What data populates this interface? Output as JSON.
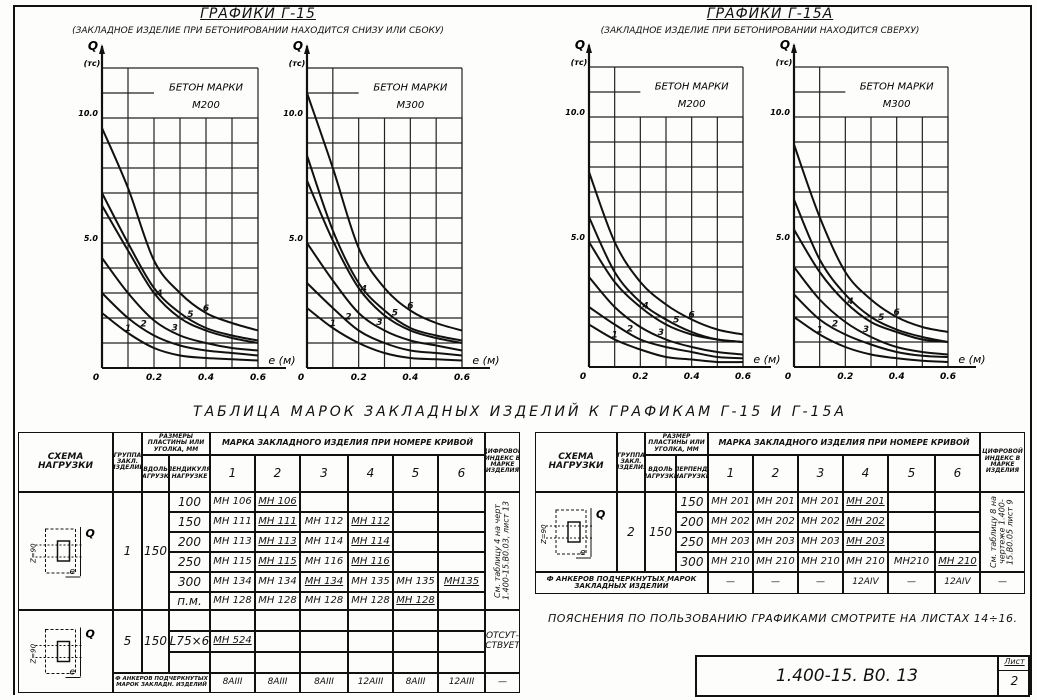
{
  "graphs_left": {
    "title": "Графики Г-15",
    "subtitle": "(Закладное изделие при бетонировании находится снизу или сбоку)"
  },
  "graphs_right": {
    "title": "Графики Г-15а",
    "subtitle": "(Закладное изделие при бетонировании находится сверху)"
  },
  "chart_data": [
    {
      "type": "line",
      "title": "Бетон марки М200",
      "group": "Г-15",
      "ylabel": "Q",
      "yunit": "(тс)",
      "xlabel": "e (м)",
      "xlim": [
        0,
        0.6
      ],
      "ylim": [
        0,
        12
      ],
      "xticks": [
        "0",
        "0.2",
        "0.4",
        "0.6"
      ],
      "yticks": [
        "5.0",
        "10.0"
      ],
      "grid": true,
      "x": [
        0,
        0.1,
        0.2,
        0.3,
        0.4,
        0.5,
        0.6
      ],
      "series": [
        {
          "name": "1",
          "values": [
            2.2,
            1.4,
            0.8,
            0.5,
            0.4,
            0.35,
            0.3
          ]
        },
        {
          "name": "2",
          "values": [
            3.0,
            2.0,
            1.3,
            0.9,
            0.7,
            0.6,
            0.5
          ]
        },
        {
          "name": "3",
          "values": [
            4.4,
            3.0,
            1.9,
            1.3,
            1.0,
            0.8,
            0.7
          ]
        },
        {
          "name": "4",
          "values": [
            6.5,
            4.7,
            3.0,
            2.0,
            1.5,
            1.2,
            1.0
          ]
        },
        {
          "name": "5",
          "values": [
            7.0,
            5.0,
            3.2,
            2.2,
            1.6,
            1.3,
            1.1
          ]
        },
        {
          "name": "6",
          "values": [
            9.6,
            7.2,
            4.3,
            3.0,
            2.2,
            1.8,
            1.5
          ]
        }
      ]
    },
    {
      "type": "line",
      "title": "Бетон марки М300",
      "group": "Г-15",
      "ylabel": "Q",
      "yunit": "(тс)",
      "xlabel": "e (м)",
      "xlim": [
        0,
        0.6
      ],
      "ylim": [
        0,
        12
      ],
      "xticks": [
        "0",
        "0.2",
        "0.4",
        "0.6"
      ],
      "yticks": [
        "5.0",
        "10.0"
      ],
      "grid": true,
      "x": [
        0,
        0.1,
        0.2,
        0.3,
        0.4,
        0.5,
        0.6
      ],
      "series": [
        {
          "name": "1",
          "values": [
            2.4,
            1.6,
            1.0,
            0.6,
            0.4,
            0.35,
            0.3
          ]
        },
        {
          "name": "2",
          "values": [
            3.4,
            2.4,
            1.5,
            1.0,
            0.7,
            0.6,
            0.5
          ]
        },
        {
          "name": "3",
          "values": [
            5.0,
            3.5,
            2.2,
            1.5,
            1.1,
            0.9,
            0.7
          ]
        },
        {
          "name": "4",
          "values": [
            7.5,
            5.1,
            3.2,
            2.1,
            1.5,
            1.2,
            1.0
          ]
        },
        {
          "name": "5",
          "values": [
            8.5,
            5.5,
            3.4,
            2.3,
            1.6,
            1.3,
            1.1
          ]
        },
        {
          "name": "6",
          "values": [
            11.0,
            8.0,
            4.8,
            3.2,
            2.3,
            1.8,
            1.5
          ]
        }
      ]
    },
    {
      "type": "line",
      "title": "Бетон марки М200",
      "group": "Г-15а",
      "ylabel": "Q",
      "yunit": "(тс)",
      "xlabel": "e (м)",
      "xlim": [
        0,
        0.6
      ],
      "ylim": [
        0,
        12
      ],
      "xticks": [
        "0",
        "0.2",
        "0.4",
        "0.6"
      ],
      "yticks": [
        "5.0",
        "10.0"
      ],
      "grid": true,
      "x": [
        0,
        0.1,
        0.2,
        0.3,
        0.4,
        0.5,
        0.6
      ],
      "series": [
        {
          "name": "1",
          "values": [
            1.7,
            1.1,
            0.7,
            0.4,
            0.3,
            0.2,
            0.2
          ]
        },
        {
          "name": "2",
          "values": [
            2.4,
            1.7,
            1.1,
            0.8,
            0.6,
            0.4,
            0.35
          ]
        },
        {
          "name": "3",
          "values": [
            3.6,
            2.4,
            1.6,
            1.1,
            0.8,
            0.6,
            0.5
          ]
        },
        {
          "name": "4",
          "values": [
            5.0,
            3.4,
            2.4,
            1.7,
            1.3,
            1.1,
            1.0
          ]
        },
        {
          "name": "5",
          "values": [
            6.0,
            3.8,
            2.6,
            1.9,
            1.4,
            1.1,
            1.0
          ]
        },
        {
          "name": "6",
          "values": [
            7.8,
            5.0,
            3.4,
            2.5,
            1.9,
            1.5,
            1.3
          ]
        }
      ]
    },
    {
      "type": "line",
      "title": "Бетон марки М300",
      "group": "Г-15а",
      "ylabel": "Q",
      "yunit": "(тс)",
      "xlabel": "e (м)",
      "xlim": [
        0,
        0.6
      ],
      "ylim": [
        0,
        12
      ],
      "xticks": [
        "0",
        "0.2",
        "0.4",
        "0.6"
      ],
      "yticks": [
        "5.0",
        "10.0"
      ],
      "grid": true,
      "x": [
        0,
        0.1,
        0.2,
        0.3,
        0.4,
        0.5,
        0.6
      ],
      "series": [
        {
          "name": "1",
          "values": [
            2.0,
            1.3,
            0.8,
            0.5,
            0.35,
            0.25,
            0.2
          ]
        },
        {
          "name": "2",
          "values": [
            2.9,
            1.9,
            1.3,
            0.9,
            0.6,
            0.45,
            0.4
          ]
        },
        {
          "name": "3",
          "values": [
            4.0,
            2.7,
            1.8,
            1.2,
            0.8,
            0.6,
            0.5
          ]
        },
        {
          "name": "4",
          "values": [
            5.5,
            3.8,
            2.6,
            1.8,
            1.4,
            1.1,
            1.0
          ]
        },
        {
          "name": "5",
          "values": [
            6.7,
            4.3,
            2.9,
            2.0,
            1.5,
            1.2,
            1.0
          ]
        },
        {
          "name": "6",
          "values": [
            8.9,
            6.0,
            3.8,
            2.7,
            2.0,
            1.6,
            1.4
          ]
        }
      ]
    }
  ],
  "table_title": "Таблица марок закладных изделий к графикам Г-15 и Г-15а",
  "left_table": {
    "h_scheme": "Схема нагрузки",
    "h_group": "Группа закл. изделий",
    "h_sizes": "Размеры пластины или уголка, мм",
    "h_along": "Вдоль нагрузки",
    "h_perp": "Перпендикулярно нагрузке",
    "h_mark": "Марка закладного изделия при номере кривой",
    "h_index": "Цифровой индекс в марке изделия",
    "curves": [
      "1",
      "2",
      "3",
      "4",
      "5",
      "6"
    ],
    "group1": {
      "group": "1",
      "along": "150",
      "index": "См. таблицу 4 на черт 1.400-15.В0.03, лист 13",
      "rows": [
        {
          "perp": "100",
          "cells": [
            {
              "t": "МН 106",
              "u": false
            },
            {
              "t": "МН 106",
              "u": true
            },
            {
              "t": "",
              "u": false
            },
            {
              "t": "",
              "u": false
            },
            {
              "t": "",
              "u": false
            },
            {
              "t": "",
              "u": false
            }
          ]
        },
        {
          "perp": "150",
          "cells": [
            {
              "t": "МН 111",
              "u": false
            },
            {
              "t": "МН 111",
              "u": true
            },
            {
              "t": "МН 112",
              "u": false
            },
            {
              "t": "МН 112",
              "u": true
            },
            {
              "t": "",
              "u": false
            },
            {
              "t": "",
              "u": false
            }
          ]
        },
        {
          "perp": "200",
          "cells": [
            {
              "t": "МН 113",
              "u": false
            },
            {
              "t": "МН 113",
              "u": true
            },
            {
              "t": "МН 114",
              "u": false
            },
            {
              "t": "МН 114",
              "u": true
            },
            {
              "t": "",
              "u": false
            },
            {
              "t": "",
              "u": false
            }
          ]
        },
        {
          "perp": "250",
          "cells": [
            {
              "t": "МН 115",
              "u": false
            },
            {
              "t": "МН 115",
              "u": true
            },
            {
              "t": "МН 116",
              "u": false
            },
            {
              "t": "МН 116",
              "u": true
            },
            {
              "t": "",
              "u": false
            },
            {
              "t": "",
              "u": false
            }
          ]
        },
        {
          "perp": "300",
          "cells": [
            {
              "t": "МН 134",
              "u": false
            },
            {
              "t": "МН 134",
              "u": false
            },
            {
              "t": "МН 134",
              "u": true
            },
            {
              "t": "МН 135",
              "u": false
            },
            {
              "t": "МН 135",
              "u": false
            },
            {
              "t": "МН135",
              "u": true
            }
          ]
        },
        {
          "perp": "п.м.",
          "cells": [
            {
              "t": "МН 128",
              "u": false
            },
            {
              "t": "МН 128",
              "u": false
            },
            {
              "t": "МН 128",
              "u": false
            },
            {
              "t": "МН 128",
              "u": false
            },
            {
              "t": "МН 128",
              "u": true
            },
            {
              "t": "",
              "u": false
            }
          ]
        }
      ]
    },
    "group5": {
      "group": "5",
      "along": "150",
      "perp": "L75×6",
      "mark": "МН 524",
      "index": "Отсут- ствует"
    },
    "anchors_label": "Ф анкеров подчеркнутых марок закладн. изделий",
    "anchors": [
      "8AIII",
      "8AIII",
      "8AIII",
      "12AIII",
      "8AIII",
      "12AIII",
      "—"
    ],
    "scheme_label_q": "Q",
    "scheme_label_e": "e",
    "scheme_dim": "Z=90"
  },
  "right_table": {
    "h_scheme": "Схема нагрузки",
    "h_group": "Группа закл. изделия",
    "h_sizes": "Размер пластины или уголка, мм",
    "h_along": "Вдоль нагрузки",
    "h_perp": "Перпенд. нагрузке",
    "h_mark": "Марка закладного изделия при номере кривой",
    "h_index": "Цифровой индекс в марке изделия",
    "curves": [
      "1",
      "2",
      "3",
      "4",
      "5",
      "6"
    ],
    "group2": {
      "group": "2",
      "along": "150",
      "index": "См. таблицу 8 на чертеже 1.400-15.В0.05 лист 9",
      "rows": [
        {
          "perp": "150",
          "cells": [
            {
              "t": "МН 201",
              "u": false
            },
            {
              "t": "МН 201",
              "u": false
            },
            {
              "t": "МН 201",
              "u": false
            },
            {
              "t": "МН 201",
              "u": true
            },
            {
              "t": "",
              "u": false
            },
            {
              "t": "",
              "u": false
            }
          ]
        },
        {
          "perp": "200",
          "cells": [
            {
              "t": "МН 202",
              "u": false
            },
            {
              "t": "МН 202",
              "u": false
            },
            {
              "t": "МН 202",
              "u": false
            },
            {
              "t": "МН 202",
              "u": true
            },
            {
              "t": "",
              "u": false
            },
            {
              "t": "",
              "u": false
            }
          ]
        },
        {
          "perp": "250",
          "cells": [
            {
              "t": "МН 203",
              "u": false
            },
            {
              "t": "МН 203",
              "u": false
            },
            {
              "t": "МН 203",
              "u": false
            },
            {
              "t": "МН 203",
              "u": true
            },
            {
              "t": "",
              "u": false
            },
            {
              "t": "",
              "u": false
            }
          ]
        },
        {
          "perp": "300",
          "cells": [
            {
              "t": "МН 210",
              "u": false
            },
            {
              "t": "МН 210",
              "u": false
            },
            {
              "t": "МН 210",
              "u": false
            },
            {
              "t": "МН 210",
              "u": false
            },
            {
              "t": "МН210",
              "u": false
            },
            {
              "t": "МН 210",
              "u": true
            }
          ]
        }
      ]
    },
    "anchors_label": "Ф анкеров подчеркнутых марок закладных изделий",
    "anchors": [
      "—",
      "—",
      "—",
      "12AIV",
      "—",
      "12AIV",
      "—"
    ],
    "scheme_label_q": "Q",
    "scheme_label_e": "e",
    "scheme_dim": "Z=90"
  },
  "note": "Пояснения по пользованию графиками смотрите на листах 14÷16.",
  "title_block": {
    "code": "1.400-15. В0. 13",
    "sheet_label": "Лист",
    "sheet": "2"
  }
}
